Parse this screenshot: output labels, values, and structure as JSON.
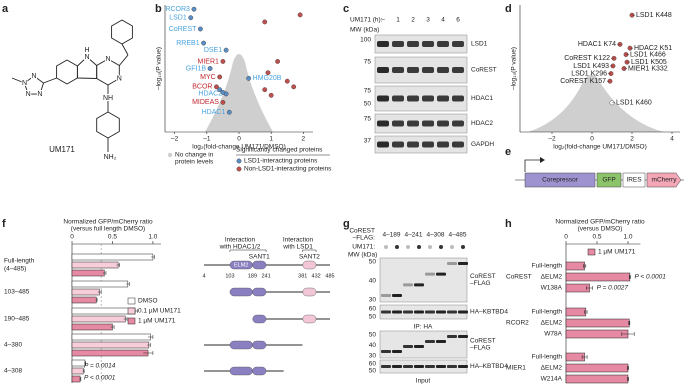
{
  "a": {
    "letter": "a",
    "atoms": [
      "N",
      "N",
      "N",
      "N",
      "N",
      "H",
      "N",
      "N",
      "NH",
      "NH₂"
    ],
    "compound": "UM171"
  },
  "b": {
    "letter": "b",
    "type": "scatter",
    "ylabel": "–log₁₀(P value)",
    "xlabel": "log₂(fold-change UM171/DMSO)",
    "xlim": [
      -2.3,
      2.3
    ],
    "xticks": [
      {
        "value": -2,
        "label": "–2"
      },
      {
        "value": -1,
        "label": "–1"
      },
      0,
      1,
      2
    ],
    "ylim": [
      0,
      9
    ],
    "series": [
      {
        "name": "LSD1-interacting proteins",
        "color": "#5b8ec6",
        "label_color": "#4aa3df",
        "labels": [
          "RCOR3",
          "LSD1",
          "CoREST",
          "RREB1",
          "DSE1",
          "GFI1B",
          "HMG20B",
          "HDAC2",
          "HDAC1",
          null,
          null
        ],
        "x": [
          -1.4,
          -1.5,
          -1.2,
          -1.1,
          -0.4,
          -0.9,
          0.3,
          -0.4,
          -0.3,
          -0.6,
          -0.5
        ],
        "y": [
          8.7,
          8.1,
          7.3,
          6.3,
          5.8,
          4.5,
          3.8,
          2.7,
          1.4,
          3.0,
          2.8
        ]
      },
      {
        "name": "Non-LSD1-interacting proteins",
        "color": "#c0504d",
        "label_color": "#c0272d",
        "labels": [
          "MIER1",
          "MYC",
          "BCOR",
          "MIDEAS",
          null,
          null,
          null,
          null,
          null,
          null,
          null,
          null
        ],
        "x": [
          -0.5,
          -0.6,
          -0.7,
          -0.5,
          0.8,
          1.9,
          1.2,
          0.9,
          1.5,
          0.8,
          1.0,
          1.7
        ],
        "y": [
          5.0,
          3.9,
          3.2,
          2.1,
          7.8,
          8.3,
          5.0,
          4.2,
          3.6,
          3.0,
          2.6,
          3.2
        ]
      }
    ],
    "legend_other": [
      "No change in",
      "protein levels"
    ],
    "legend_header": "Significantly changed proteins"
  },
  "c": {
    "letter": "c",
    "treatment_label": "UM171 (h):",
    "mw_label": "MW (kDa)",
    "lanes": [
      "–",
      "1",
      "2",
      "3",
      "4",
      "6"
    ],
    "blots": [
      {
        "protein": "LSD1",
        "mw": [
          100
        ]
      },
      {
        "protein": "CoREST",
        "mw": [
          75
        ]
      },
      {
        "protein": "HDAC1",
        "mw": [
          75,
          50
        ]
      },
      {
        "protein": "HDAC2",
        "mw": [
          75
        ]
      },
      {
        "protein": "GAPDH",
        "mw": [
          37
        ]
      }
    ]
  },
  "d": {
    "letter": "d",
    "type": "scatter",
    "ylabel": "–log₁₀(P value)",
    "xlabel": "log₂(fold-change UM171/DMSO)",
    "xlim": [
      -3.6,
      4.4
    ],
    "xticks": [
      {
        "value": -2,
        "label": "–2"
      },
      0,
      2,
      4
    ],
    "ylim": [
      0,
      10
    ],
    "color": "#c0504d",
    "labels": [
      "LSD1 K448",
      "HDAC1 K74",
      "HDAC2 K51",
      "LSD1 K466",
      "CoREST K122",
      "LSD1 K505",
      "LSD1 K493",
      "MIER1 K332",
      "LSD1 K296",
      "CoREST K157",
      "LSD1 K460"
    ],
    "x": [
      2.0,
      1.4,
      1.9,
      1.7,
      1.1,
      1.75,
      1.05,
      1.6,
      0.95,
      0.9,
      1.0
    ],
    "y": [
      9.2,
      6.9,
      6.6,
      6.1,
      5.8,
      5.5,
      5.2,
      5.0,
      4.6,
      4.0,
      2.3
    ]
  },
  "e": {
    "letter": "e",
    "parts": [
      "Corepressor",
      "GFP",
      "IRES",
      "mCherry"
    ]
  },
  "f": {
    "letter": "f",
    "type": "bar",
    "axis_title": [
      "Normalized GFP/mCherry ratio",
      "(versus full length DMSO)"
    ],
    "xlim": [
      0,
      1.1
    ],
    "xticks": [
      0,
      0.5,
      {
        "value": 1,
        "label": "1.0"
      }
    ],
    "categories": [
      "Full-length",
      "103–485",
      "190–485",
      "4–380",
      "4–308"
    ],
    "first_category_range": "(4–485)",
    "series": [
      {
        "name": "DMSO",
        "color": "#ffffff",
        "values": [
          1.0,
          0.69,
          0.78,
          0.97,
          0.16
        ],
        "errors": [
          0.02,
          0.02,
          0.03,
          0.03,
          0.01
        ]
      },
      {
        "name": "0.1 µM UM171",
        "color": "#f6cdd8",
        "values": [
          0.57,
          0.34,
          0.66,
          0.95,
          0.14
        ],
        "errors": [
          0.02,
          0.02,
          0.02,
          0.02,
          0.01
        ]
      },
      {
        "name": "1 µM UM171",
        "color": "#e58aa2",
        "values": [
          0.4,
          0.3,
          0.5,
          0.94,
          0.1
        ],
        "errors": [
          0.02,
          0.01,
          0.02,
          0.06,
          0.01
        ]
      }
    ],
    "reference_line": 0.36,
    "p_values": [
      "P = 0.0014",
      "P < 0.0001"
    ],
    "schematic": {
      "hdac_header": [
        "Interaction",
        "with HDAC1/2"
      ],
      "lsd1_header": [
        "Interaction",
        "with LSD1"
      ],
      "domains": [
        "ELM2",
        "SANT1",
        "SANT2"
      ],
      "positions": [
        4,
        103,
        189,
        241,
        381,
        432,
        485
      ]
    }
  },
  "g": {
    "letter": "g",
    "construct_label": [
      "CoREST",
      "–FLAG:"
    ],
    "constructs": [
      "4–189",
      "4–241",
      "4–308",
      "4–485"
    ],
    "treatment_label": "UM171:",
    "mw_label": "MW (kDa)",
    "ip_blots": [
      {
        "protein": [
          "CoREST",
          "–FLAG"
        ],
        "mw": [
          50,
          40,
          30
        ]
      },
      {
        "protein": [
          "HA–KBTBD4"
        ],
        "mw": [
          60,
          50
        ]
      }
    ],
    "ip_label": "IP: HA",
    "input_blots": [
      {
        "protein": [
          "CoREST",
          "–FLAG"
        ],
        "mw": [
          50,
          40,
          30
        ]
      },
      {
        "protein": [
          "HA–KBTBD4"
        ],
        "mw": [
          60,
          50
        ]
      }
    ],
    "input_label": "Input"
  },
  "h": {
    "letter": "h",
    "type": "bar",
    "axis_title": [
      "Normalized GFP/mCherry ratio",
      "(versus DMSO)"
    ],
    "xlim": [
      0,
      1.2
    ],
    "xticks": [
      0,
      0.5,
      {
        "value": 1,
        "label": "1.0"
      }
    ],
    "series_name": "1 µM UM171",
    "color": "#e58aa2",
    "groups": [
      {
        "name": "CoREST",
        "categories": [
          "Full-length",
          "ΔELM2",
          "W138A"
        ],
        "values": [
          0.3,
          1.03,
          0.38
        ],
        "errors": [
          0.02,
          0.01,
          0.05
        ]
      },
      {
        "name": "RCOR2",
        "categories": [
          "Full-length",
          "ΔELM2",
          "W78A"
        ],
        "values": [
          0.32,
          1.02,
          1.0
        ],
        "errors": [
          0.02,
          0.01,
          0.1
        ]
      },
      {
        "name": "MIER1",
        "categories": [
          "Full-length",
          "ΔELM2",
          "W214A"
        ],
        "values": [
          0.3,
          1.0,
          1.0
        ],
        "errors": [
          0.04,
          0.01,
          0.01
        ]
      }
    ],
    "p_values": [
      "P < 0.0001",
      "P = 0.0027"
    ]
  }
}
